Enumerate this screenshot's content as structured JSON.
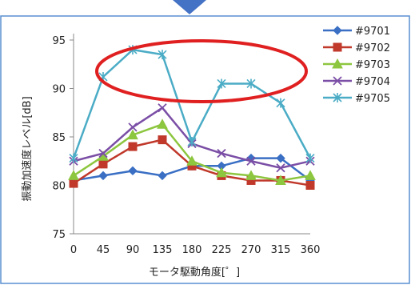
{
  "chart_data": {
    "type": "line",
    "xlabel": "モータ駆動角度[゜]",
    "ylabel": "振動加速度レベル[dB]",
    "categories": [
      "0",
      "45",
      "90",
      "135",
      "180",
      "225",
      "270",
      "315",
      "360"
    ],
    "ylim": [
      75,
      95
    ],
    "yticks": [
      "75",
      "80",
      "85",
      "90",
      "95"
    ],
    "grid": false,
    "legend_position": "top-right",
    "series": [
      {
        "name": "#9701",
        "color": "#3a6fc4",
        "marker": "diamond",
        "values": [
          80.5,
          81.0,
          81.5,
          81.0,
          82.0,
          82.0,
          82.8,
          82.8,
          80.5
        ]
      },
      {
        "name": "#9702",
        "color": "#c0392b",
        "marker": "square",
        "values": [
          80.2,
          82.2,
          84.0,
          84.7,
          82.0,
          81.0,
          80.5,
          80.5,
          80.0
        ]
      },
      {
        "name": "#9703",
        "color": "#8dc63f",
        "marker": "triangle",
        "values": [
          81.0,
          83.0,
          85.2,
          86.3,
          82.5,
          81.3,
          81.0,
          80.5,
          81.0
        ]
      },
      {
        "name": "#9704",
        "color": "#7b4fa6",
        "marker": "x",
        "values": [
          82.5,
          83.3,
          86.0,
          88.0,
          84.3,
          83.3,
          82.5,
          81.8,
          82.5
        ]
      },
      {
        "name": "#9705",
        "color": "#4bacc6",
        "marker": "asterisk",
        "values": [
          82.8,
          91.2,
          94.0,
          93.5,
          84.5,
          90.5,
          90.5,
          88.5,
          82.8
        ]
      }
    ],
    "annotation": {
      "shape": "ellipse",
      "color": "#e02020"
    },
    "decoration": {
      "arrow_color": "#4472c4"
    }
  }
}
